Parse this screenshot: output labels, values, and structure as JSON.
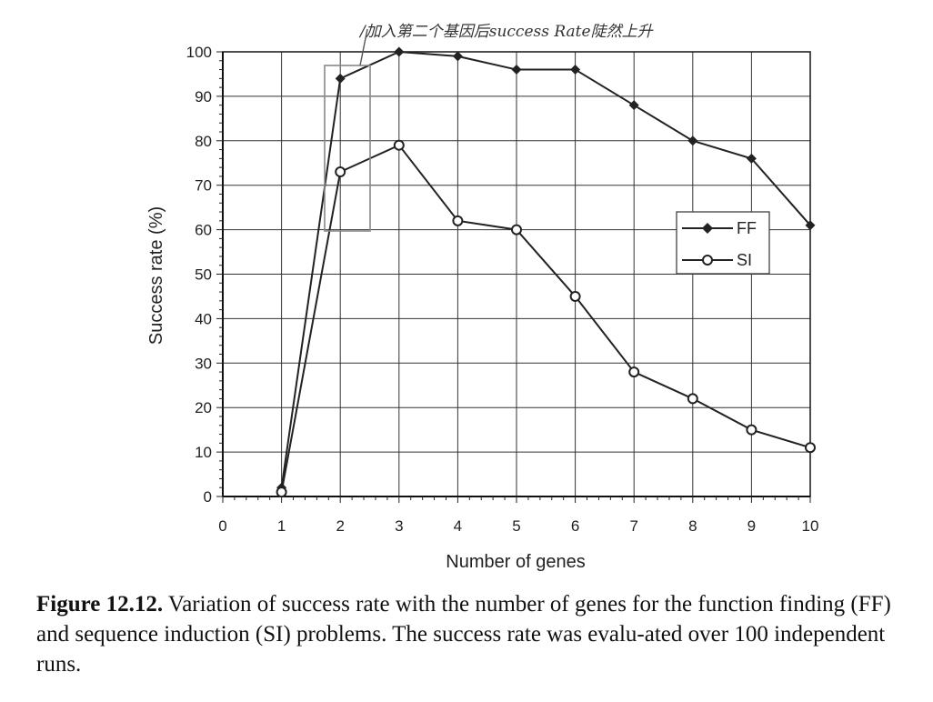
{
  "chart_data": {
    "type": "line",
    "xlabel": "Number of genes",
    "ylabel": "Success rate (%)",
    "xlim": [
      0,
      10
    ],
    "ylim": [
      0,
      100
    ],
    "x_ticks": [
      0,
      1,
      2,
      3,
      4,
      5,
      6,
      7,
      8,
      9,
      10
    ],
    "y_ticks": [
      0,
      10,
      20,
      30,
      40,
      50,
      60,
      70,
      80,
      90,
      100
    ],
    "grid": true,
    "legend_position": "right",
    "series": [
      {
        "name": "FF",
        "marker": "filled-diamond",
        "color": "#222222",
        "x": [
          1,
          2,
          3,
          4,
          5,
          6,
          7,
          8,
          9,
          10
        ],
        "y": [
          2,
          94,
          100,
          99,
          96,
          96,
          88,
          80,
          76,
          61
        ]
      },
      {
        "name": "SI",
        "marker": "open-circle",
        "color": "#222222",
        "x": [
          1,
          2,
          3,
          4,
          5,
          6,
          7,
          8,
          9,
          10
        ],
        "y": [
          1,
          73,
          79,
          62,
          60,
          45,
          28,
          22,
          15,
          11
        ]
      }
    ],
    "annotation": {
      "text": "/加入第二个基因后success Rate陡然上升"
    }
  },
  "caption": {
    "label": "Figure 12.12.",
    "text": " Variation of success rate with the number of genes for the function finding (FF) and sequence induction (SI) problems. The success rate was evalu-ated over 100 independent runs."
  }
}
